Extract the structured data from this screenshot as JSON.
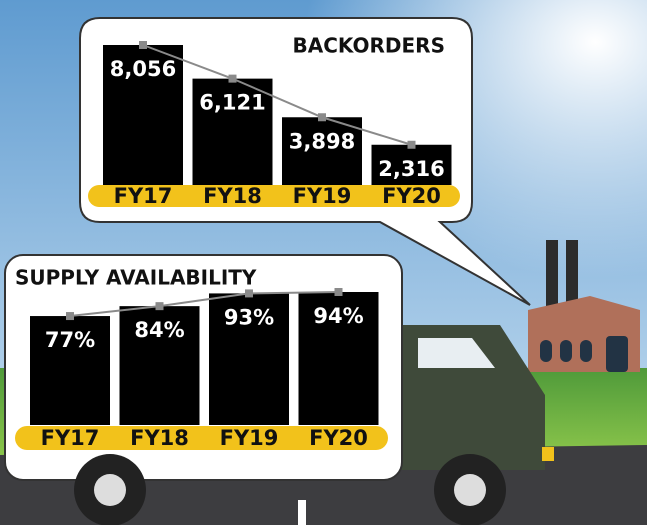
{
  "chart_data": [
    {
      "type": "bar",
      "title": "BACKORDERS",
      "categories": [
        "FY17",
        "FY18",
        "FY19",
        "FY20"
      ],
      "values": [
        8056,
        6121,
        3898,
        2316
      ],
      "value_labels": [
        "8,056",
        "6,121",
        "3,898",
        "2,316"
      ],
      "color": "#000000",
      "line_color": "#8a8a8a",
      "band_color": "#f2c21b"
    },
    {
      "type": "bar",
      "title": "SUPPLY AVAILABILITY",
      "categories": [
        "FY17",
        "FY18",
        "FY19",
        "FY20"
      ],
      "values": [
        77,
        84,
        93,
        94
      ],
      "value_labels": [
        "77%",
        "84%",
        "93%",
        "94%"
      ],
      "color": "#000000",
      "line_color": "#8a8a8a",
      "band_color": "#f2c21b"
    }
  ]
}
